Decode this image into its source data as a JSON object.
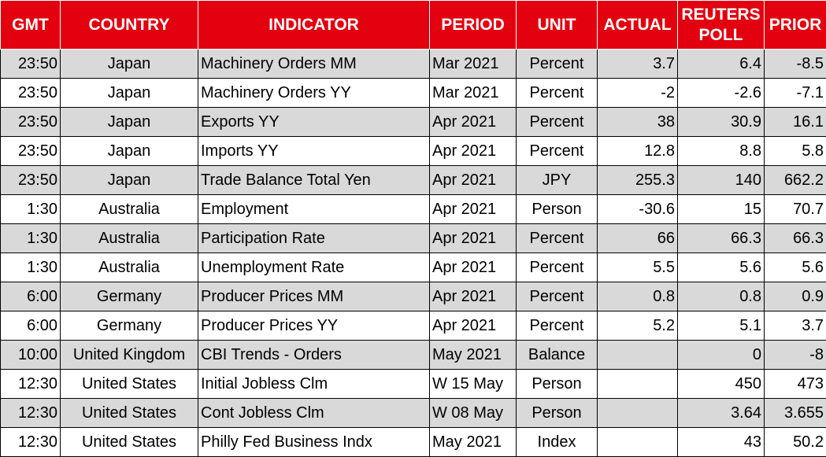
{
  "headers": [
    "GMT",
    "COUNTRY",
    "INDICATOR",
    "PERIOD",
    "UNIT",
    "ACTUAL",
    "REUTERS POLL",
    "PRIOR"
  ],
  "rows": [
    [
      "23:50",
      "Japan",
      "Machinery Orders MM",
      "Mar 2021",
      "Percent",
      "3.7",
      "6.4",
      "-8.5"
    ],
    [
      "23:50",
      "Japan",
      "Machinery Orders YY",
      "Mar 2021",
      "Percent",
      "-2",
      "-2.6",
      "-7.1"
    ],
    [
      "23:50",
      "Japan",
      "Exports YY",
      "Apr 2021",
      "Percent",
      "38",
      "30.9",
      "16.1"
    ],
    [
      "23:50",
      "Japan",
      "Imports YY",
      "Apr 2021",
      "Percent",
      "12.8",
      "8.8",
      "5.8"
    ],
    [
      "23:50",
      "Japan",
      "Trade Balance Total Yen",
      "Apr 2021",
      "JPY",
      "255.3",
      "140",
      "662.2"
    ],
    [
      "1:30",
      "Australia",
      "Employment",
      "Apr 2021",
      "Person",
      "-30.6",
      "15",
      "70.7"
    ],
    [
      "1:30",
      "Australia",
      "Participation Rate",
      "Apr 2021",
      "Percent",
      "66",
      "66.3",
      "66.3"
    ],
    [
      "1:30",
      "Australia",
      "Unemployment Rate",
      "Apr 2021",
      "Percent",
      "5.5",
      "5.6",
      "5.6"
    ],
    [
      "6:00",
      "Germany",
      "Producer Prices MM",
      "Apr 2021",
      "Percent",
      "0.8",
      "0.8",
      "0.9"
    ],
    [
      "6:00",
      "Germany",
      "Producer Prices YY",
      "Apr 2021",
      "Percent",
      "5.2",
      "5.1",
      "3.7"
    ],
    [
      "10:00",
      "United Kingdom",
      "CBI Trends - Orders",
      "May 2021",
      "Balance",
      "",
      "0",
      "-8"
    ],
    [
      "12:30",
      "United States",
      "Initial Jobless Clm",
      "W 15 May",
      "Person",
      "",
      "450",
      "473"
    ],
    [
      "12:30",
      "United States",
      "Cont Jobless Clm",
      "W 08 May",
      "Person",
      "",
      "3.64",
      "3.655"
    ],
    [
      "12:30",
      "United States",
      "Philly Fed Business Indx",
      "May 2021",
      "Index",
      "",
      "43",
      "50.2"
    ]
  ],
  "colors": {
    "header_bg": "#e3000f",
    "header_text": "#ffffff",
    "row_shade": "#d9d9d9",
    "row_plain": "#ffffff"
  }
}
